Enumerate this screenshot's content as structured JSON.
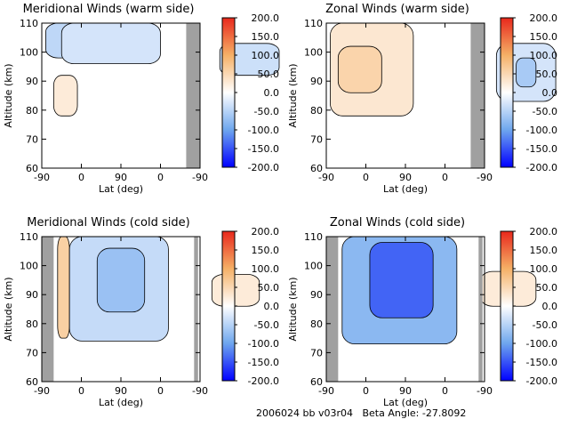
{
  "footer": {
    "id": "2006024 bb v03r04",
    "beta_label": "Beta Angle:",
    "beta_value": "-27.8092"
  },
  "colorbar": {
    "ticks": [
      "200.0",
      "150.0",
      "100.0",
      "50.0",
      "0.0",
      "-50.0",
      "-100.0",
      "-150.0",
      "-200.0"
    ],
    "range": [
      -200,
      200
    ],
    "colors": {
      "max": "#e8281c",
      "mid_warm": "#f5b066",
      "zero": "#ffffff",
      "mid_cold": "#6ea6ee",
      "min": "#0000ff"
    }
  },
  "chart_data": [
    {
      "type": "heatmap",
      "title": "Meridional Winds (warm side)",
      "xlabel": "Lat (deg)",
      "ylabel": "Altitude (km)",
      "x_tick_labels": [
        "-90",
        "0",
        "90",
        "0",
        "-90"
      ],
      "y_tick_labels": [
        "60",
        "70",
        "80",
        "90",
        "100",
        "110"
      ],
      "ylim": [
        60,
        110
      ],
      "no_data_band_ticks": [
        1.65,
        2.28
      ],
      "features": [
        {
          "value": -45,
          "x": [
            -1.9,
            -0.3
          ],
          "y": [
            98,
            110
          ]
        },
        {
          "value": -30,
          "x": [
            -1.5,
            1.0
          ],
          "y": [
            96,
            110
          ]
        },
        {
          "value": -35,
          "x": [
            2.5,
            4.0
          ],
          "y": [
            92,
            103
          ]
        },
        {
          "value": 25,
          "x": [
            -1.7,
            -1.1
          ],
          "y": [
            78,
            92
          ]
        }
      ]
    },
    {
      "type": "heatmap",
      "title": "Zonal Winds (warm side)",
      "xlabel": "Lat (deg)",
      "ylabel": "Altitude (km)",
      "x_tick_labels": [
        "-90",
        "0",
        "90",
        "0",
        "-90"
      ],
      "y_tick_labels": [
        "60",
        "70",
        "80",
        "90",
        "100",
        "110"
      ],
      "ylim": [
        60,
        110
      ],
      "no_data_band_ticks": [
        1.65,
        2.28
      ],
      "features": [
        {
          "value": 30,
          "x": [
            -1.9,
            0.2
          ],
          "y": [
            78,
            110
          ]
        },
        {
          "value": 55,
          "x": [
            -1.7,
            -0.6
          ],
          "y": [
            86,
            102
          ]
        },
        {
          "value": -30,
          "x": [
            2.3,
            3.8
          ],
          "y": [
            83,
            103
          ]
        },
        {
          "value": -60,
          "x": [
            2.8,
            3.3
          ],
          "y": [
            88,
            98
          ]
        }
      ]
    },
    {
      "type": "heatmap",
      "title": "Meridional Winds (cold side)",
      "xlabel": "Lat (deg)",
      "ylabel": "Altitude (km)",
      "x_tick_labels": [
        "-90",
        "0",
        "90",
        "0",
        "-90"
      ],
      "y_tick_labels": [
        "60",
        "70",
        "80",
        "90",
        "100",
        "110"
      ],
      "ylim": [
        60,
        110
      ],
      "no_data_band_ticks": [
        -2.0,
        -1.7,
        1.85,
        1.95,
        3.7,
        4.0
      ],
      "features": [
        {
          "value": 60,
          "x": [
            -1.6,
            -1.3
          ],
          "y": [
            75,
            110
          ]
        },
        {
          "value": -40,
          "x": [
            -1.3,
            1.2
          ],
          "y": [
            74,
            110
          ]
        },
        {
          "value": -70,
          "x": [
            -0.6,
            0.6
          ],
          "y": [
            84,
            106
          ]
        },
        {
          "value": 25,
          "x": [
            2.3,
            3.5
          ],
          "y": [
            86,
            97
          ]
        }
      ]
    },
    {
      "type": "heatmap",
      "title": "Zonal Winds (cold side)",
      "xlabel": "Lat (deg)",
      "ylabel": "Altitude (km)",
      "x_tick_labels": [
        "-90",
        "0",
        "90",
        "0",
        "-90"
      ],
      "y_tick_labels": [
        "60",
        "70",
        "80",
        "90",
        "100",
        "110"
      ],
      "ylim": [
        60,
        110
      ],
      "no_data_band_ticks": [
        -2.0,
        -1.7,
        1.85,
        1.95,
        3.7,
        4.0
      ],
      "features": [
        {
          "value": -80,
          "x": [
            -1.6,
            1.3
          ],
          "y": [
            73,
            110
          ]
        },
        {
          "value": -140,
          "x": [
            -0.9,
            0.7
          ],
          "y": [
            82,
            108
          ]
        },
        {
          "value": 25,
          "x": [
            1.9,
            3.3
          ],
          "y": [
            86,
            98
          ]
        }
      ]
    }
  ]
}
